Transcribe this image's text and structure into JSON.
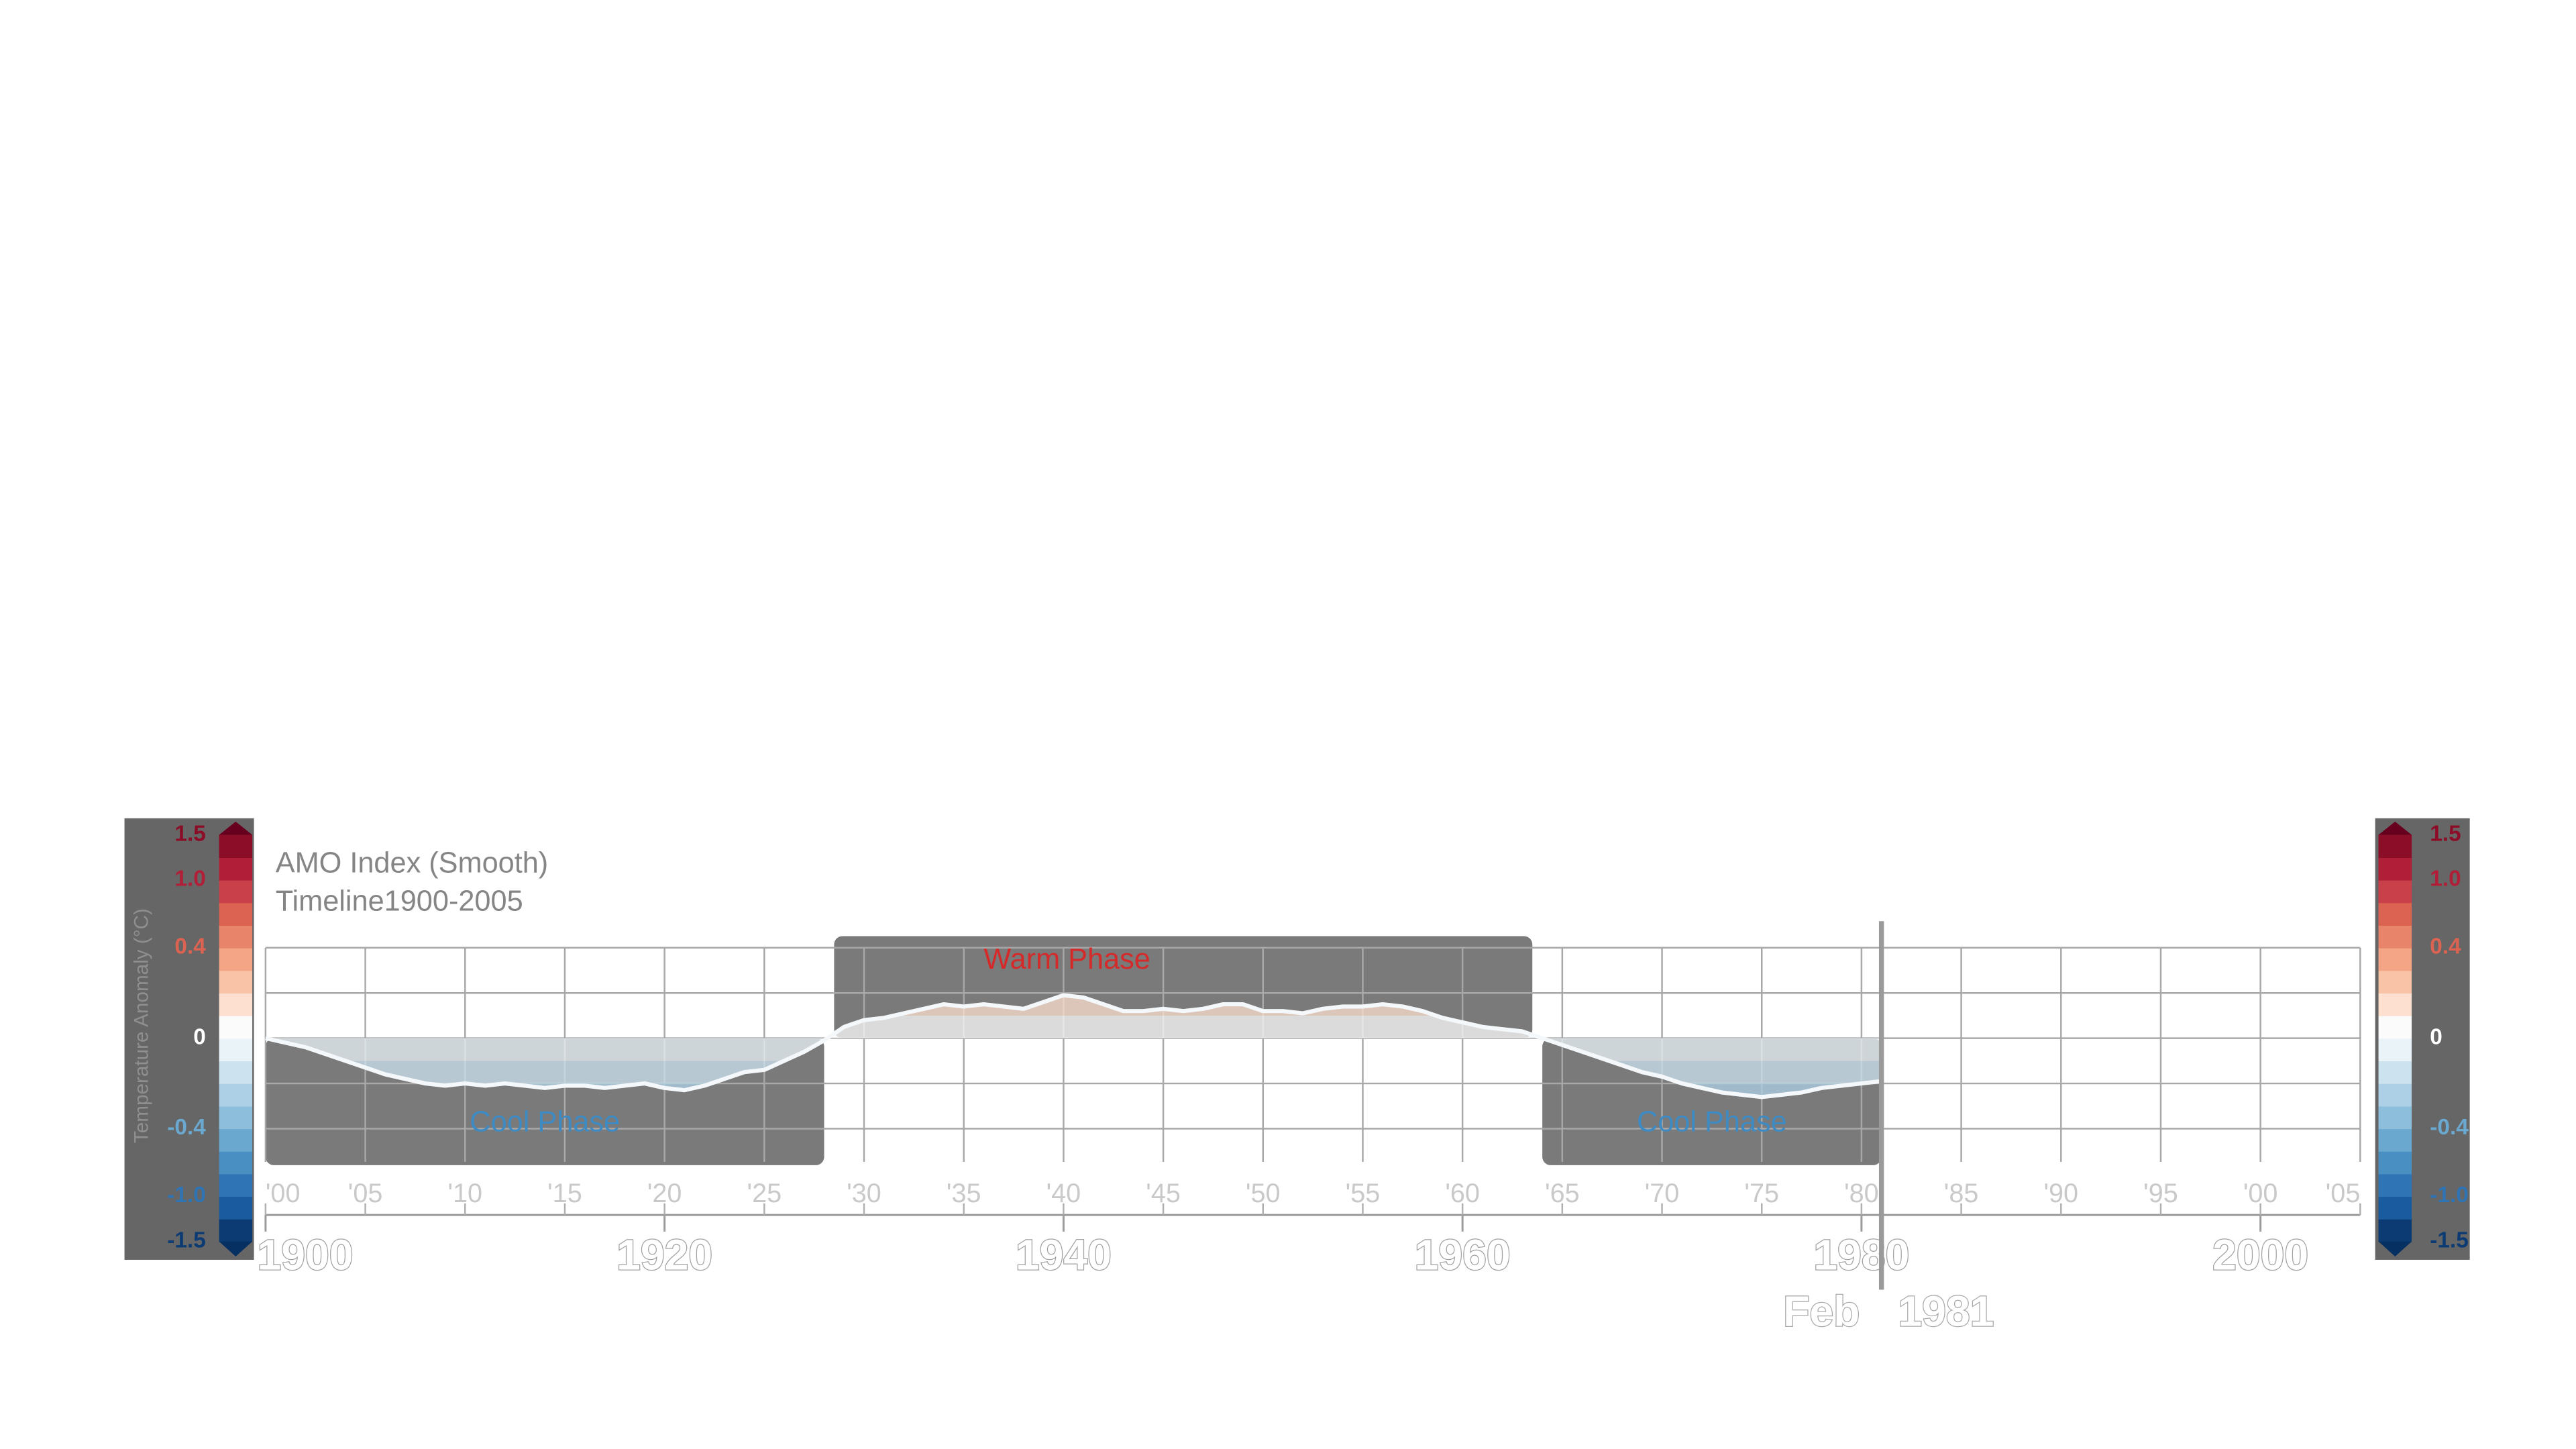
{
  "chart_data": {
    "type": "area",
    "title": "AMO Index (Smooth)",
    "subtitle": "Timeline1900-2005",
    "y_label": "Temperature Anomaly (°C)",
    "x": [
      1900,
      1901,
      1902,
      1903,
      1904,
      1905,
      1906,
      1907,
      1908,
      1909,
      1910,
      1911,
      1912,
      1913,
      1914,
      1915,
      1916,
      1917,
      1918,
      1919,
      1920,
      1921,
      1922,
      1923,
      1924,
      1925,
      1926,
      1927,
      1928,
      1929,
      1930,
      1931,
      1932,
      1933,
      1934,
      1935,
      1936,
      1937,
      1938,
      1939,
      1940,
      1941,
      1942,
      1943,
      1944,
      1945,
      1946,
      1947,
      1948,
      1949,
      1950,
      1951,
      1952,
      1953,
      1954,
      1955,
      1956,
      1957,
      1958,
      1959,
      1960,
      1961,
      1962,
      1963,
      1964,
      1965,
      1966,
      1967,
      1968,
      1969,
      1970,
      1971,
      1972,
      1973,
      1974,
      1975,
      1976,
      1977,
      1978,
      1979,
      1980,
      1981
    ],
    "series": [
      {
        "name": "AMO Index (Smooth)",
        "color": "#f4f8fa",
        "values": [
          0.0,
          -0.02,
          -0.04,
          -0.07,
          -0.1,
          -0.13,
          -0.16,
          -0.18,
          -0.2,
          -0.21,
          -0.2,
          -0.21,
          -0.2,
          -0.21,
          -0.22,
          -0.21,
          -0.21,
          -0.22,
          -0.21,
          -0.2,
          -0.22,
          -0.23,
          -0.21,
          -0.18,
          -0.15,
          -0.14,
          -0.1,
          -0.06,
          -0.01,
          0.05,
          0.08,
          0.09,
          0.11,
          0.13,
          0.15,
          0.14,
          0.15,
          0.14,
          0.13,
          0.16,
          0.19,
          0.18,
          0.15,
          0.12,
          0.12,
          0.13,
          0.12,
          0.13,
          0.15,
          0.15,
          0.12,
          0.12,
          0.11,
          0.13,
          0.14,
          0.14,
          0.15,
          0.14,
          0.12,
          0.09,
          0.07,
          0.05,
          0.04,
          0.03,
          0.0,
          -0.03,
          -0.06,
          -0.09,
          -0.12,
          -0.15,
          -0.17,
          -0.2,
          -0.22,
          -0.24,
          -0.25,
          -0.26,
          -0.25,
          -0.24,
          -0.22,
          -0.21,
          -0.2,
          -0.19
        ]
      }
    ],
    "xlim": [
      1900,
      2005
    ],
    "ylim": [
      -0.4,
      0.4
    ],
    "yticks": [
      -0.4,
      -0.2,
      0,
      0.2,
      0.4
    ],
    "xticks": [
      {
        "value": 1900,
        "label": "'00"
      },
      {
        "value": 1905,
        "label": "'05"
      },
      {
        "value": 1910,
        "label": "'10"
      },
      {
        "value": 1915,
        "label": "'15"
      },
      {
        "value": 1920,
        "label": "'20"
      },
      {
        "value": 1925,
        "label": "'25"
      },
      {
        "value": 1930,
        "label": "'30"
      },
      {
        "value": 1935,
        "label": "'35"
      },
      {
        "value": 1940,
        "label": "'40"
      },
      {
        "value": 1945,
        "label": "'45"
      },
      {
        "value": 1950,
        "label": "'50"
      },
      {
        "value": 1955,
        "label": "'55"
      },
      {
        "value": 1960,
        "label": "'60"
      },
      {
        "value": 1965,
        "label": "'65"
      },
      {
        "value": 1970,
        "label": "'70"
      },
      {
        "value": 1975,
        "label": "'75"
      },
      {
        "value": 1980,
        "label": "'80"
      },
      {
        "value": 1985,
        "label": "'85"
      },
      {
        "value": 1990,
        "label": "'90"
      },
      {
        "value": 1995,
        "label": "'95"
      },
      {
        "value": 2000,
        "label": "'00"
      },
      {
        "value": 2005,
        "label": "'05"
      }
    ],
    "xticks_major": [
      1900,
      1920,
      1940,
      1960,
      1980,
      2000
    ],
    "grid": true,
    "phases": [
      {
        "label": "Cool Phase",
        "start": 1900,
        "end": 1928,
        "color": "#3e8bc4"
      },
      {
        "label": "Warm Phase",
        "start": 1928.5,
        "end": 1963.5,
        "color": "#d42a2a"
      },
      {
        "label": "Cool Phase",
        "start": 1964,
        "end": 1981,
        "color": "#3e8bc4"
      }
    ],
    "current": {
      "month": "Feb",
      "year": 1981
    },
    "colorbar": {
      "levels": [
        -1.5,
        -1.25,
        -1,
        -0.8,
        -0.6,
        -0.4,
        -0.3,
        -0.2,
        -0.1,
        0,
        0.1,
        0.2,
        0.3,
        0.4,
        0.6,
        0.8,
        1,
        1.25,
        1.5
      ],
      "colors": [
        "#0b3b72",
        "#1a5a9e",
        "#2f74b4",
        "#4a8fc2",
        "#6aa8d0",
        "#8dbfdd",
        "#aed0e6",
        "#cde2ef",
        "#eaf3f8",
        "#fbfbfb",
        "#fde0d0",
        "#f9c3a8",
        "#f3a585",
        "#e8846a",
        "#dc6352",
        "#c9404a",
        "#b01f37",
        "#8b0d28"
      ],
      "under_color": "#053061",
      "over_color": "#67001f",
      "ticks": [
        1.5,
        {
          "value": 1,
          "label": "1.0"
        },
        0.4,
        0,
        -0.4,
        {
          "value": -1,
          "label": "-1.0"
        },
        -1.5
      ]
    }
  }
}
